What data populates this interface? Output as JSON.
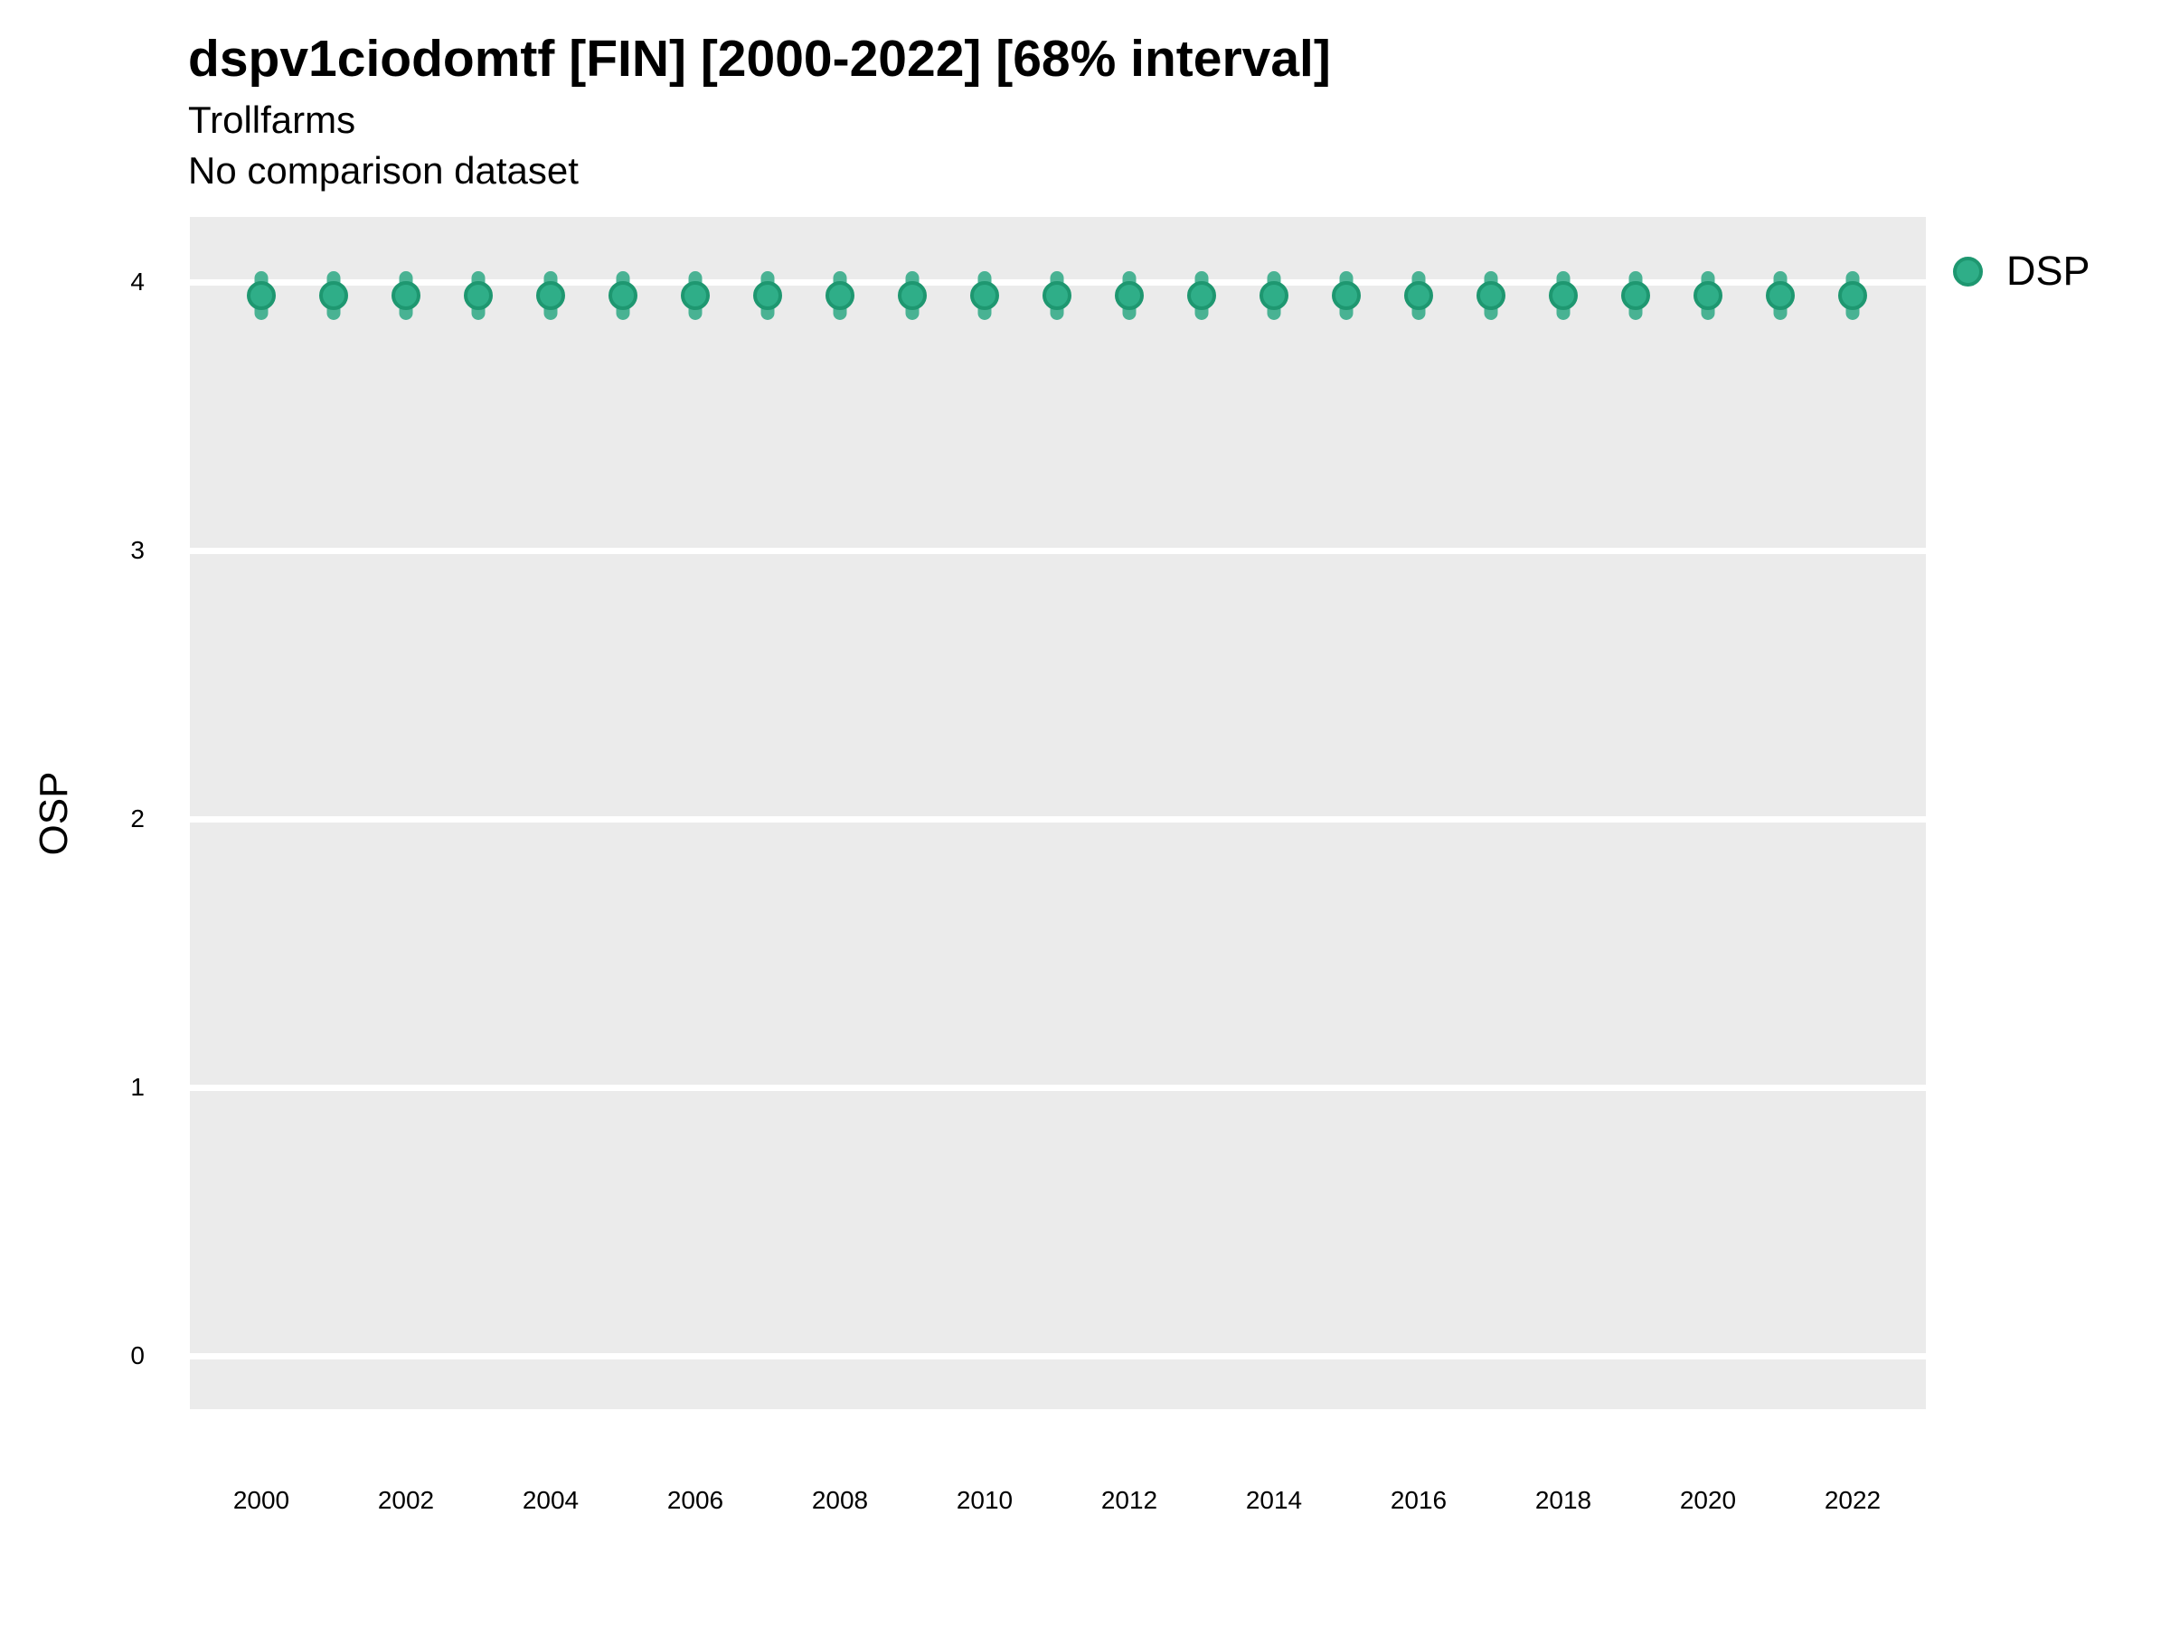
{
  "header": {
    "title": "dspv1ciodomtf [FIN] [2000-2022] [68% interval]",
    "subtitle": "Trollfarms",
    "comparison_note": "No comparison dataset"
  },
  "y_axis": {
    "label": "OSP"
  },
  "legend": {
    "items": [
      {
        "label": "DSP",
        "color": "#2da884"
      }
    ]
  },
  "colors": {
    "point_fill": "#2fae88",
    "point_edge": "#1e9770",
    "interval_bar": "#2da884",
    "panel_background": "#ebebeb",
    "gridline": "#ffffff",
    "text": "#000000"
  },
  "chart_data": {
    "type": "scatter",
    "title": "dspv1ciodomtf [FIN] [2000-2022] [68% interval]",
    "subtitle": "Trollfarms",
    "annotation": "No comparison dataset",
    "xlabel": "",
    "ylabel": "OSP",
    "x": [
      2000,
      2001,
      2002,
      2003,
      2004,
      2005,
      2006,
      2007,
      2008,
      2009,
      2010,
      2011,
      2012,
      2013,
      2014,
      2015,
      2016,
      2017,
      2018,
      2019,
      2020,
      2021,
      2022
    ],
    "series": [
      {
        "name": "DSP",
        "values": [
          3.95,
          3.95,
          3.95,
          3.95,
          3.95,
          3.95,
          3.95,
          3.95,
          3.95,
          3.95,
          3.95,
          3.95,
          3.95,
          3.95,
          3.95,
          3.95,
          3.95,
          3.95,
          3.95,
          3.95,
          3.95,
          3.95,
          3.95
        ],
        "interval": "68%",
        "interval_low": [
          3.87,
          3.87,
          3.87,
          3.87,
          3.87,
          3.87,
          3.87,
          3.87,
          3.87,
          3.87,
          3.87,
          3.87,
          3.87,
          3.87,
          3.87,
          3.87,
          3.87,
          3.87,
          3.87,
          3.87,
          3.87,
          3.87,
          3.87
        ],
        "interval_high": [
          4.03,
          4.03,
          4.03,
          4.03,
          4.03,
          4.03,
          4.03,
          4.03,
          4.03,
          4.03,
          4.03,
          4.03,
          4.03,
          4.03,
          4.03,
          4.03,
          4.03,
          4.03,
          4.03,
          4.03,
          4.03,
          4.03,
          4.03
        ]
      }
    ],
    "xticks": [
      2000,
      2002,
      2004,
      2006,
      2008,
      2010,
      2012,
      2014,
      2016,
      2018,
      2020,
      2022
    ],
    "yticks": [
      0,
      1,
      2,
      3,
      4
    ],
    "xlim": [
      1999,
      2023
    ],
    "ylim": [
      -0.2,
      4.24
    ],
    "grid": true,
    "grid_color": "#ffffff",
    "panel_color": "#ebebeb",
    "legend_position": "right"
  }
}
